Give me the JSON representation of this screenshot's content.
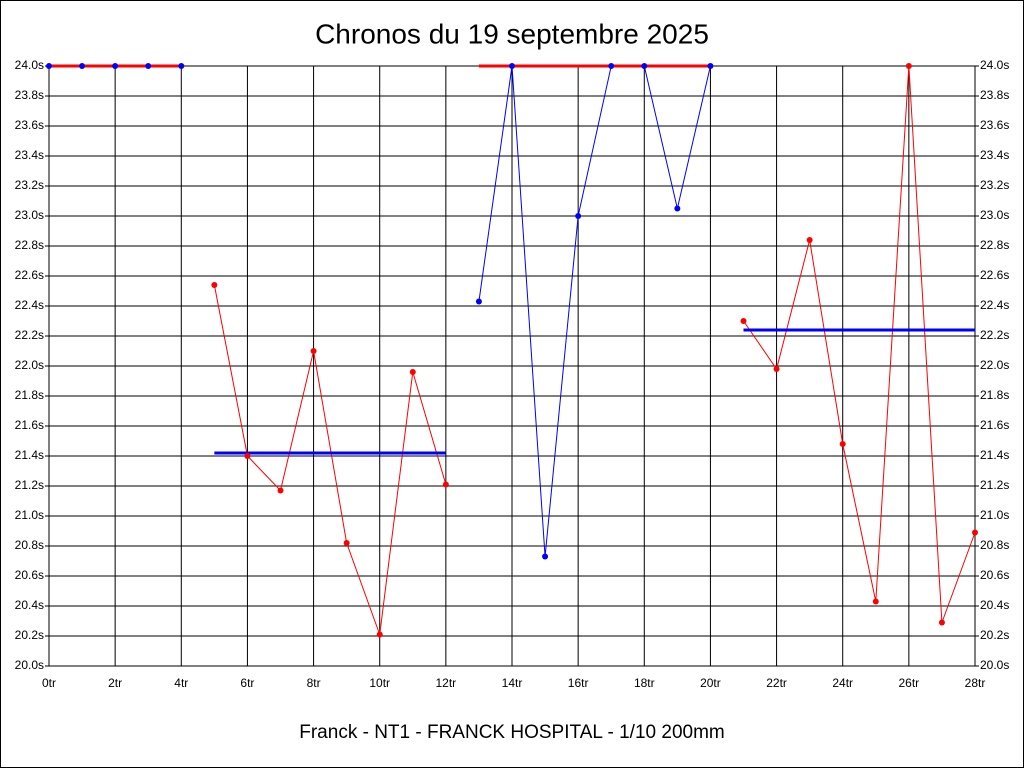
{
  "chart_data": {
    "type": "line",
    "title": "Chronos du 19 septembre 2025",
    "x_label": "Franck - NT1 - FRANCK HOSPITAL - 1/10 200mm",
    "xlim": [
      0,
      28
    ],
    "xticks": [
      {
        "value": 0,
        "label": "0tr"
      },
      {
        "value": 2,
        "label": "2tr"
      },
      {
        "value": 4,
        "label": "4tr"
      },
      {
        "value": 6,
        "label": "6tr"
      },
      {
        "value": 8,
        "label": "8tr"
      },
      {
        "value": 10,
        "label": "10tr"
      },
      {
        "value": 12,
        "label": "12tr"
      },
      {
        "value": 14,
        "label": "14tr"
      },
      {
        "value": 16,
        "label": "16tr"
      },
      {
        "value": 18,
        "label": "18tr"
      },
      {
        "value": 20,
        "label": "20tr"
      },
      {
        "value": 22,
        "label": "22tr"
      },
      {
        "value": 24,
        "label": "24tr"
      },
      {
        "value": 26,
        "label": "26tr"
      },
      {
        "value": 28,
        "label": "28tr"
      }
    ],
    "ylim": [
      20.0,
      24.0
    ],
    "yticks": [
      {
        "value": 20.0,
        "label": "20.0s"
      },
      {
        "value": 20.2,
        "label": "20.2s"
      },
      {
        "value": 20.4,
        "label": "20.4s"
      },
      {
        "value": 20.6,
        "label": "20.6s"
      },
      {
        "value": 20.8,
        "label": "20.8s"
      },
      {
        "value": 21.0,
        "label": "21.0s"
      },
      {
        "value": 21.2,
        "label": "21.2s"
      },
      {
        "value": 21.4,
        "label": "21.4s"
      },
      {
        "value": 21.6,
        "label": "21.6s"
      },
      {
        "value": 21.8,
        "label": "21.8s"
      },
      {
        "value": 22.0,
        "label": "22.0s"
      },
      {
        "value": 22.2,
        "label": "22.2s"
      },
      {
        "value": 22.4,
        "label": "22.4s"
      },
      {
        "value": 22.6,
        "label": "22.6s"
      },
      {
        "value": 22.8,
        "label": "22.8s"
      },
      {
        "value": 23.0,
        "label": "23.0s"
      },
      {
        "value": 23.2,
        "label": "23.2s"
      },
      {
        "value": 23.4,
        "label": "23.4s"
      },
      {
        "value": 23.6,
        "label": "23.6s"
      },
      {
        "value": 23.8,
        "label": "23.8s"
      },
      {
        "value": 24.0,
        "label": "24.0s"
      }
    ],
    "y2lim": [
      20.0,
      24.0
    ],
    "y2ticks": [
      {
        "value": 20.0,
        "label": "20.0s"
      },
      {
        "value": 20.2,
        "label": "20.2s"
      },
      {
        "value": 20.4,
        "label": "20.4s"
      },
      {
        "value": 20.6,
        "label": "20.6s"
      },
      {
        "value": 20.8,
        "label": "20.8s"
      },
      {
        "value": 21.0,
        "label": "21.0s"
      },
      {
        "value": 21.2,
        "label": "21.2s"
      },
      {
        "value": 21.4,
        "label": "21.4s"
      },
      {
        "value": 21.6,
        "label": "21.6s"
      },
      {
        "value": 21.8,
        "label": "21.8s"
      },
      {
        "value": 22.0,
        "label": "22.0s"
      },
      {
        "value": 22.2,
        "label": "22.2s"
      },
      {
        "value": 22.4,
        "label": "22.4s"
      },
      {
        "value": 22.6,
        "label": "22.6s"
      },
      {
        "value": 22.8,
        "label": "22.8s"
      },
      {
        "value": 23.0,
        "label": "23.0s"
      },
      {
        "value": 23.2,
        "label": "23.2s"
      },
      {
        "value": 23.4,
        "label": "23.4s"
      },
      {
        "value": 23.6,
        "label": "23.6s"
      },
      {
        "value": 23.8,
        "label": "23.8s"
      },
      {
        "value": 24.0,
        "label": "24.0s"
      }
    ],
    "grid": true,
    "series": [
      {
        "color": "#0000ff",
        "x": [
          0,
          1,
          2,
          3,
          4
        ],
        "values": [
          24.0,
          24.0,
          24.0,
          24.0,
          24.0
        ]
      },
      {
        "color": "#ff0000",
        "x": [
          5,
          6,
          7,
          8,
          9,
          10,
          11,
          12
        ],
        "values": [
          22.54,
          21.4,
          21.17,
          22.1,
          20.82,
          20.21,
          21.96,
          21.21
        ]
      },
      {
        "color": "#0000ff",
        "x": [
          13,
          14,
          15,
          16,
          17,
          18,
          19,
          20
        ],
        "values": [
          22.43,
          24.0,
          20.73,
          23.0,
          24.0,
          24.0,
          23.05,
          24.0
        ]
      },
      {
        "color": "#ff0000",
        "x": [
          21,
          22,
          23,
          24,
          25,
          26,
          27,
          28
        ],
        "values": [
          22.3,
          21.98,
          22.84,
          21.48,
          20.43,
          24.0,
          20.29,
          20.89
        ]
      }
    ],
    "reference_lines": [
      {
        "color": "#ff0000",
        "x": [
          0,
          4
        ],
        "value": 24.0
      },
      {
        "color": "#0000ff",
        "x": [
          5,
          12
        ],
        "value": 21.42
      },
      {
        "color": "#ff0000",
        "x": [
          13,
          20
        ],
        "value": 24.0
      },
      {
        "color": "#0000ff",
        "x": [
          21,
          28
        ],
        "value": 22.24
      }
    ]
  }
}
